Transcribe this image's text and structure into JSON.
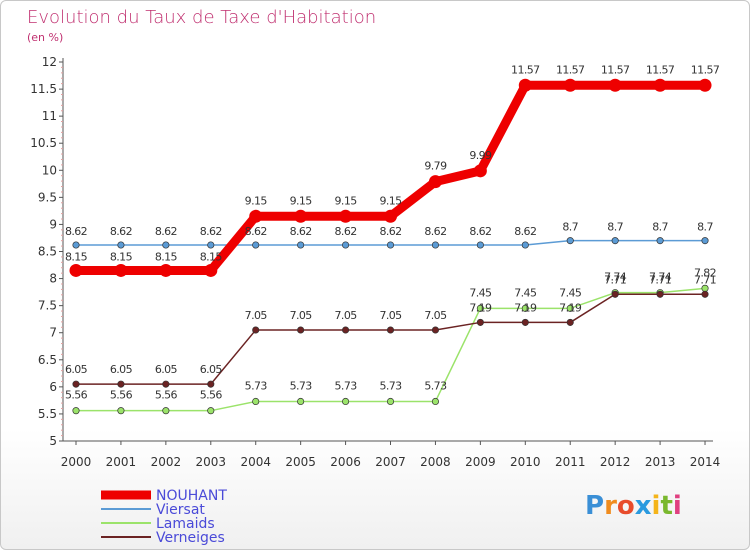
{
  "title": "Evolution du Taux de Taxe d'Habitation",
  "subtitle": "(en %)",
  "logo": {
    "letters": [
      "P",
      "r",
      "o",
      "x",
      "i",
      "t",
      "i"
    ]
  },
  "chart_data": {
    "type": "line",
    "x": [
      "2000",
      "2001",
      "2002",
      "2003",
      "2004",
      "2005",
      "2006",
      "2007",
      "2008",
      "2009",
      "2010",
      "2011",
      "2012",
      "2013",
      "2014"
    ],
    "yticks": [
      "5",
      "5.5",
      "6",
      "6.5",
      "7",
      "7.5",
      "8",
      "8.5",
      "9",
      "9.5",
      "10",
      "10.5",
      "11",
      "11.5",
      "12"
    ],
    "ylim": [
      5,
      12
    ],
    "grid": false,
    "legend": "bottom-left",
    "series": [
      {
        "name": "NOUHANT",
        "color": "#ee0000",
        "values": [
          8.15,
          8.15,
          8.15,
          8.15,
          9.15,
          9.15,
          9.15,
          9.15,
          9.79,
          9.99,
          11.57,
          11.57,
          11.57,
          11.57,
          11.57
        ],
        "labels": [
          "8.15",
          "8.15",
          "8.15",
          "8.15",
          "9.15",
          "9.15",
          "9.15",
          "9.15",
          "9.79",
          "9.99",
          "11.57",
          "11.57",
          "11.57",
          "11.57",
          "11.57"
        ]
      },
      {
        "name": "Viersat",
        "color": "#5b9bd5",
        "values": [
          8.62,
          8.62,
          8.62,
          8.62,
          8.62,
          8.62,
          8.62,
          8.62,
          8.62,
          8.62,
          8.62,
          8.7,
          8.7,
          8.7,
          8.7
        ],
        "labels": [
          "8.62",
          "8.62",
          "8.62",
          "8.62",
          "8.62",
          "8.62",
          "8.62",
          "8.62",
          "8.62",
          "8.62",
          "8.62",
          "8.7",
          "8.7",
          "8.7",
          "8.7"
        ]
      },
      {
        "name": "Lamaids",
        "color": "#9be36a",
        "values": [
          5.56,
          5.56,
          5.56,
          5.56,
          5.73,
          5.73,
          5.73,
          5.73,
          5.73,
          7.45,
          7.45,
          7.45,
          7.74,
          7.74,
          7.82
        ],
        "labels": [
          "5.56",
          "5.56",
          "5.56",
          "5.56",
          "5.73",
          "5.73",
          "5.73",
          "5.73",
          "5.73",
          "7.45",
          "7.45",
          "7.45",
          "7.74",
          "7.74",
          "7.82"
        ]
      },
      {
        "name": "Verneiges",
        "color": "#6b2323",
        "values": [
          6.05,
          6.05,
          6.05,
          6.05,
          7.05,
          7.05,
          7.05,
          7.05,
          7.05,
          7.19,
          7.19,
          7.19,
          7.71,
          7.71,
          7.71
        ],
        "labels": [
          "6.05",
          "6.05",
          "6.05",
          "6.05",
          "7.05",
          "7.05",
          "7.05",
          "7.05",
          "7.05",
          "7.19",
          "7.19",
          "7.19",
          "7.71",
          "7.71",
          "7.71"
        ]
      }
    ]
  }
}
